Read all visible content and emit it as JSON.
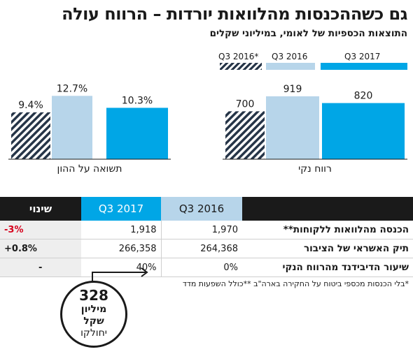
{
  "title": "גם כשההכנסות מהלוואות יורדות – הרווח עולה",
  "subtitle": "התוצאות הכספיות של לאומי, במיליוני שקלים",
  "legend": [
    {
      "label": "Q3 2017",
      "style": "solid",
      "color": "#00a6e6"
    },
    {
      "label": "Q3 2016",
      "style": "light",
      "color": "#b7d5ea"
    },
    {
      "label": "Q3 2016*",
      "style": "hatched",
      "color": "#263548"
    }
  ],
  "chart_data": [
    {
      "type": "bar",
      "xlabel": "תשואה על ההון",
      "categories": [
        "Q3 2016*",
        "Q3 2016",
        "Q3 2017"
      ],
      "values": [
        9.4,
        12.7,
        10.3
      ],
      "value_labels": [
        "9.4%",
        "12.7%",
        "10.3%"
      ],
      "ylim": [
        0,
        14
      ]
    },
    {
      "type": "bar",
      "xlabel": "רווח נקי",
      "categories": [
        "Q3 2016*",
        "Q3 2016",
        "Q3 2017"
      ],
      "values": [
        700,
        919,
        820
      ],
      "value_labels": [
        "700",
        "919",
        "820"
      ],
      "ylim": [
        0,
        1020
      ]
    }
  ],
  "table": {
    "headers": {
      "change": "שינוי",
      "q3_2017": "Q3 2017",
      "q3_2016": "Q3 2016"
    },
    "rows": [
      {
        "label": "הכנסה מהלוואות ללקוחות**",
        "q3_2016": "1,970",
        "q3_2017": "1,918",
        "change": "-3%",
        "change_color": "#d6001c"
      },
      {
        "label": "תיק האשראי של הציבור",
        "q3_2016": "264,368",
        "q3_2017": "266,358",
        "change": "+0.8%",
        "change_color": "#1a1a1a"
      },
      {
        "label": "שיעור הדיבידנד מהרווח הנקי",
        "q3_2016": "0%",
        "q3_2017": "40%",
        "change": "-",
        "change_color": "#1a1a1a"
      }
    ]
  },
  "footnote": "*בלי הכנסות מכספי ביטוח על החקירה בארה\"ב **כולל השפעות מדד",
  "callout": {
    "value": "328",
    "line1": "מיליון",
    "line2": "שקל",
    "line3": "יחולקו"
  },
  "colors": {
    "accent": "#00a6e6",
    "light": "#b7d5ea",
    "dark": "#263548",
    "negative": "#d6001c"
  }
}
